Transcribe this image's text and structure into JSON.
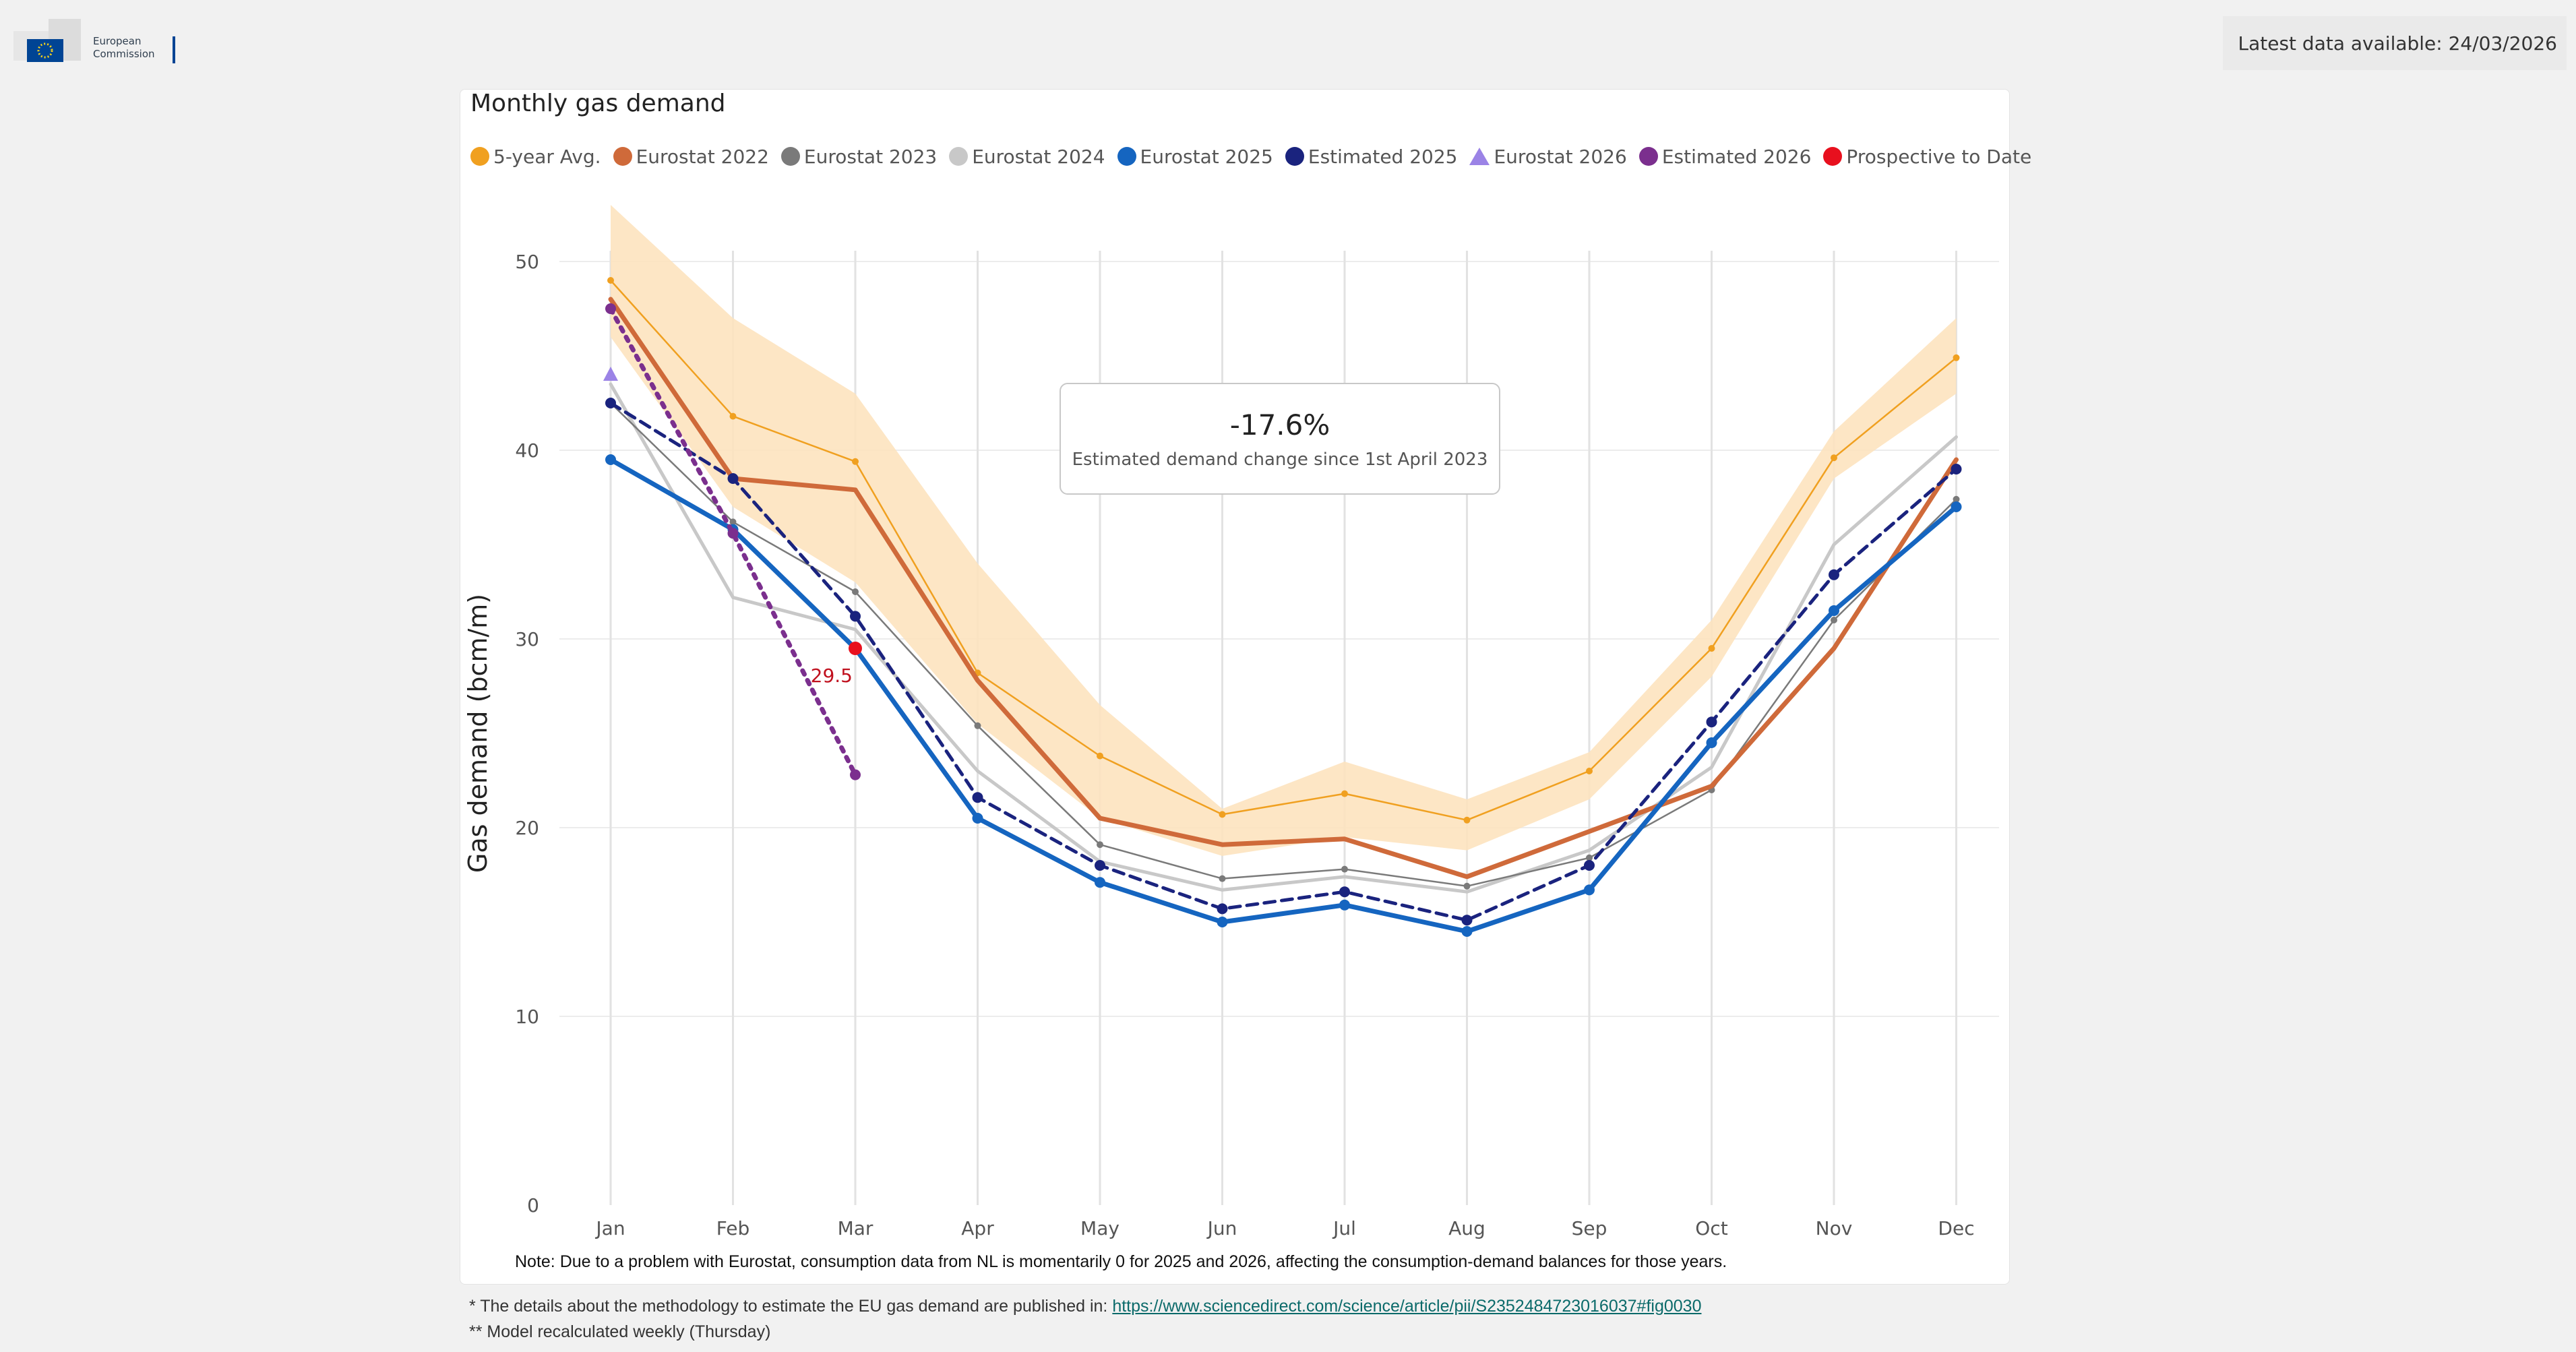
{
  "header": {
    "logo_line1": "European",
    "logo_line2": "Commission",
    "latest": "Latest data available: 24/03/2026"
  },
  "card": {
    "title": "Monthly gas demand",
    "note": "Note: Due to a problem with Eurostat, consumption data from NL is momentarily 0 for 2025 and 2026, affecting the consumption-demand balances for those years."
  },
  "callout": {
    "value": "-17.6%",
    "label": "Estimated demand change since 1st April 2023"
  },
  "footer": {
    "line1_prefix": "* The details about the methodology to estimate the EU gas demand are published in:",
    "line1_link": "https://www.sciencedirect.com/science/article/pii/S2352484723016037#fig0030",
    "line2": "** Model recalculated weekly (Thursday)"
  },
  "legend": [
    {
      "name": "5-year Avg.",
      "color": "#f0a020",
      "marker": "circle"
    },
    {
      "name": "Eurostat 2022",
      "color": "#cf6a3a",
      "marker": "circle"
    },
    {
      "name": "Eurostat 2023",
      "color": "#7a7a7a",
      "marker": "circle"
    },
    {
      "name": "Eurostat 2024",
      "color": "#c8c8c8",
      "marker": "circle"
    },
    {
      "name": "Eurostat 2025",
      "color": "#1565c0",
      "marker": "circle"
    },
    {
      "name": "Estimated 2025",
      "color": "#1a237e",
      "marker": "circle"
    },
    {
      "name": "Eurostat 2026",
      "color": "#9b83e6",
      "marker": "triangle"
    },
    {
      "name": "Estimated 2026",
      "color": "#7b2f8e",
      "marker": "circle"
    },
    {
      "name": "Prospective to Date",
      "color": "#e8101e",
      "marker": "circle"
    }
  ],
  "chart_data": {
    "type": "line",
    "title": "Monthly gas demand",
    "xlabel": "",
    "ylabel": "Gas demand (bcm/m)",
    "ylim": [
      0,
      50
    ],
    "yticks": [
      0,
      10,
      20,
      30,
      40,
      50
    ],
    "categories": [
      "Jan",
      "Feb",
      "Mar",
      "Apr",
      "May",
      "Jun",
      "Jul",
      "Aug",
      "Sep",
      "Oct",
      "Nov",
      "Dec"
    ],
    "band": {
      "name": "5-year range",
      "color": "#fde3bf",
      "upper": [
        53,
        47,
        43,
        34,
        26.5,
        21,
        23.5,
        21.5,
        24,
        31,
        41,
        47
      ],
      "lower": [
        46,
        37,
        33,
        25.5,
        20.5,
        18.5,
        19.5,
        18.8,
        21.5,
        28,
        38.5,
        43
      ]
    },
    "series": [
      {
        "name": "Eurostat 2024",
        "color": "#c8c8c8",
        "width": 5,
        "dash": "",
        "dots": false,
        "values": [
          43.5,
          32.2,
          30.5,
          23,
          18.2,
          16.7,
          17.4,
          16.6,
          18.8,
          23.2,
          35,
          40.7
        ]
      },
      {
        "name": "Eurostat 2023",
        "color": "#7a7a7a",
        "width": 2.5,
        "dash": "",
        "dots": true,
        "values": [
          42.5,
          36.2,
          32.5,
          25.4,
          19.1,
          17.3,
          17.8,
          16.9,
          18.4,
          22,
          31,
          37.4
        ]
      },
      {
        "name": "5-year Avg.",
        "color": "#f0a020",
        "width": 2.5,
        "dash": "",
        "dots": true,
        "values": [
          49,
          41.8,
          39.4,
          28.2,
          23.8,
          20.7,
          21.8,
          20.4,
          23,
          29.5,
          39.6,
          44.9
        ]
      },
      {
        "name": "Eurostat 2022",
        "color": "#cf6a3a",
        "width": 7,
        "dash": "",
        "dots": false,
        "values": [
          48,
          38.5,
          37.9,
          27.8,
          20.5,
          19.1,
          19.4,
          17.4,
          19.8,
          22.2,
          29.5,
          39.5
        ]
      },
      {
        "name": "Eurostat 2025",
        "color": "#1565c0",
        "width": 7,
        "dash": "",
        "dots": true,
        "values": [
          39.5,
          35.8,
          29.5,
          20.5,
          17.1,
          15,
          15.9,
          14.5,
          16.7,
          24.5,
          31.5,
          37
        ]
      },
      {
        "name": "Estimated 2025",
        "color": "#1a237e",
        "width": 5,
        "dash": "16 10",
        "dots": true,
        "values": [
          42.5,
          38.5,
          31.2,
          21.6,
          18,
          15.7,
          16.6,
          15.1,
          18,
          25.6,
          33.4,
          39
        ]
      },
      {
        "name": "Estimated 2026",
        "color": "#7b2f8e",
        "width": 7,
        "dash": "6 10",
        "dots": true,
        "values": [
          47.5,
          35.6,
          22.8,
          null,
          null,
          null,
          null,
          null,
          null,
          null,
          null,
          null
        ]
      },
      {
        "name": "Eurostat 2026",
        "color": "#9b83e6",
        "marker": "triangle",
        "values": [
          44,
          null,
          null,
          null,
          null,
          null,
          null,
          null,
          null,
          null,
          null,
          null
        ]
      }
    ],
    "prospective": {
      "name": "Prospective to Date",
      "color": "#e8101e",
      "month": "Mar",
      "value": 29.5,
      "label": "29.5"
    }
  }
}
